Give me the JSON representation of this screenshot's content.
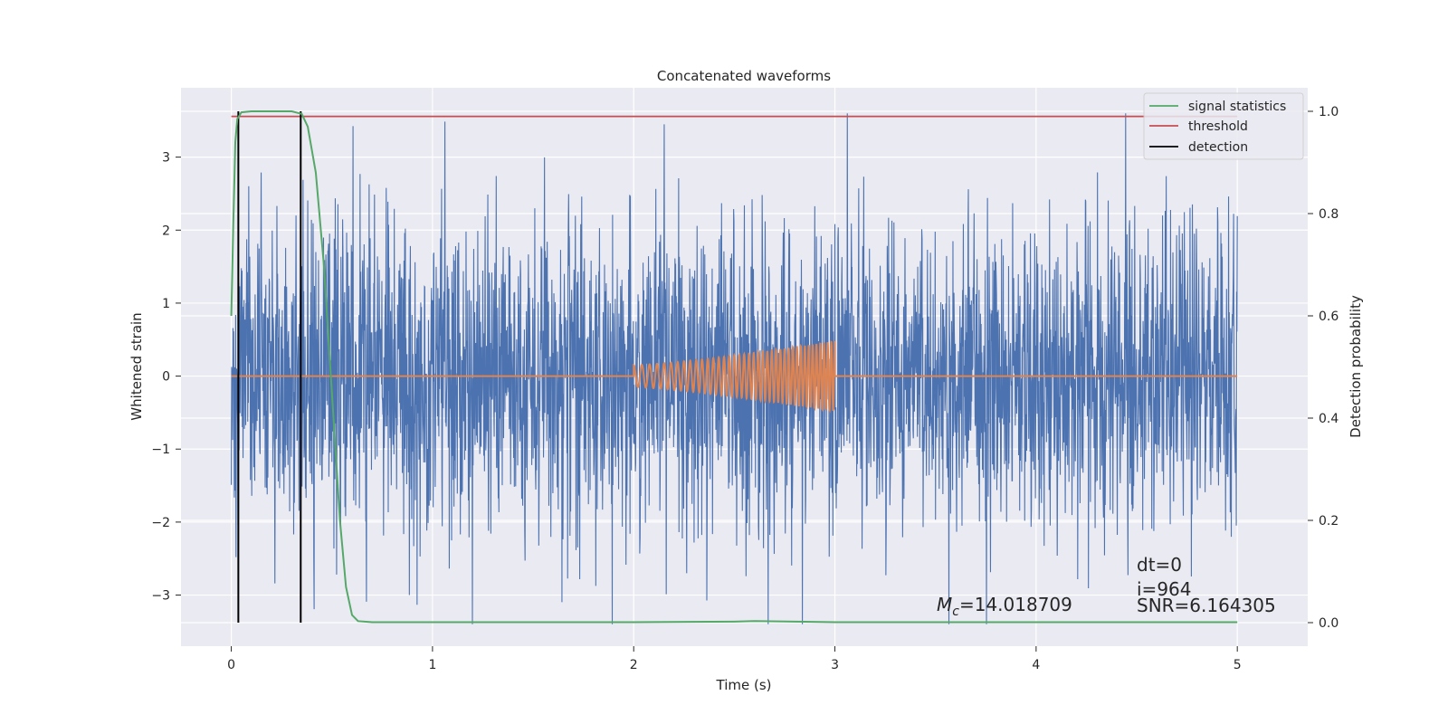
{
  "chart_data": {
    "type": "line",
    "title": "Concatenated waveforms",
    "xlabel": "Time (s)",
    "ylabel_left": "Whitened strain",
    "ylabel_right": "Detection probability",
    "xlim": [
      -0.25,
      5.35
    ],
    "ylim_left": [
      -3.7,
      3.95
    ],
    "ylim_right": [
      -0.046,
      1.046
    ],
    "xticks": [
      0,
      1,
      2,
      3,
      4,
      5
    ],
    "xtick_labels": [
      "0",
      "1",
      "2",
      "3",
      "4",
      "5"
    ],
    "yticks_left": [
      -3,
      -2,
      -1,
      0,
      1,
      2,
      3
    ],
    "ytick_labels_left": [
      "−3",
      "−2",
      "−1",
      "0",
      "1",
      "2",
      "3"
    ],
    "yticks_right": [
      0.0,
      0.2,
      0.4,
      0.6,
      0.8,
      1.0
    ],
    "ytick_labels_right": [
      "0.0",
      "0.2",
      "0.4",
      "0.6",
      "0.8",
      "1.0"
    ],
    "grid": true,
    "legend_placement": "top-right",
    "legend": [
      {
        "name": "signal statistics",
        "color": "#55a868"
      },
      {
        "name": "threshold",
        "color": "#c44e52"
      },
      {
        "name": "detection",
        "color": "#000000"
      }
    ],
    "colors": {
      "strain": "#4c72b0",
      "template": "#dd8452",
      "background": "#eaeaf2",
      "grid": "#ffffff"
    },
    "strain_noise": {
      "t_start": 0,
      "t_end": 5,
      "sigma": 1.0,
      "max": 3.6,
      "min": -3.4
    },
    "template": {
      "t_start": 2.0,
      "t_end": 3.0,
      "amp_start": 0.15,
      "amp_end": 0.48,
      "cycles": 40
    },
    "signal_statistics": {
      "x": [
        0.0,
        0.01,
        0.02,
        0.03,
        0.05,
        0.1,
        0.2,
        0.3,
        0.35,
        0.38,
        0.42,
        0.46,
        0.5,
        0.54,
        0.57,
        0.6,
        0.63,
        0.7,
        1.0,
        2.0,
        2.5,
        2.6,
        2.8,
        3.0,
        3.5,
        4.0,
        4.5,
        5.0
      ],
      "y": [
        0.6,
        0.78,
        0.94,
        0.985,
        0.998,
        1.0,
        1.0,
        1.0,
        0.995,
        0.97,
        0.88,
        0.7,
        0.45,
        0.2,
        0.07,
        0.015,
        0.003,
        0.001,
        0.001,
        0.001,
        0.002,
        0.003,
        0.002,
        0.001,
        0.001,
        0.001,
        0.001,
        0.001
      ]
    },
    "threshold": {
      "value": 0.99,
      "x_start": 0.0,
      "x_end": 5.0
    },
    "detections": [
      0.035,
      0.345
    ],
    "annotations": {
      "mc": "=14.018709",
      "dt": "dt=0",
      "i": "i=964",
      "snr": "SNR=6.164305"
    }
  }
}
